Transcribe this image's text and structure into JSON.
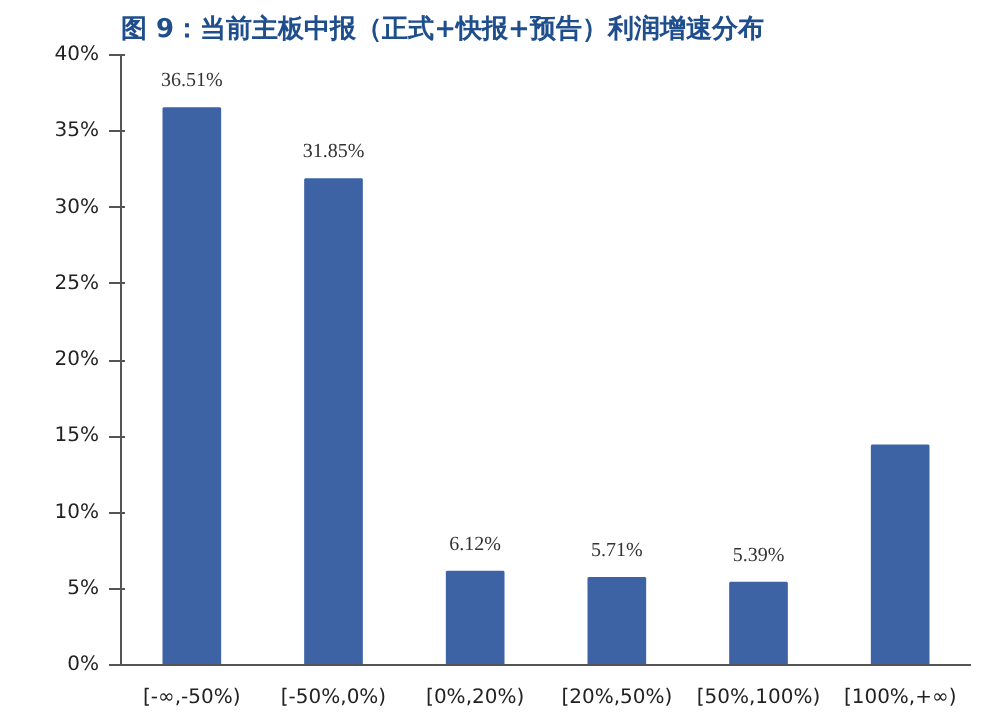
{
  "chart_data": {
    "type": "bar",
    "title": "图 9：当前主板中报（正式+快报+预告）利润增速分布",
    "categories": [
      "[-∞,-50%)",
      "[-50%,0%)",
      "[0%,20%)",
      "[20%,50%)",
      "[50%,100%)",
      "[100%,+∞)"
    ],
    "values": [
      36.51,
      31.85,
      6.12,
      5.71,
      5.39,
      14.4
    ],
    "value_labels": [
      "36.51%",
      "31.85%",
      "6.12%",
      "5.71%",
      "5.39%",
      null
    ],
    "color": "#3d63a5",
    "ylim": [
      0,
      40
    ],
    "yticks": [
      {
        "value": 0,
        "label": "0%"
      },
      {
        "value": 5,
        "label": "5%"
      },
      {
        "value": 10,
        "label": "10%"
      },
      {
        "value": 15,
        "label": "15%"
      },
      {
        "value": 20,
        "label": "20%"
      },
      {
        "value": 25,
        "label": "25%"
      },
      {
        "value": 30,
        "label": "30%"
      },
      {
        "value": 35,
        "label": "35%"
      },
      {
        "value": 40,
        "label": "40%"
      }
    ],
    "grid": false
  }
}
